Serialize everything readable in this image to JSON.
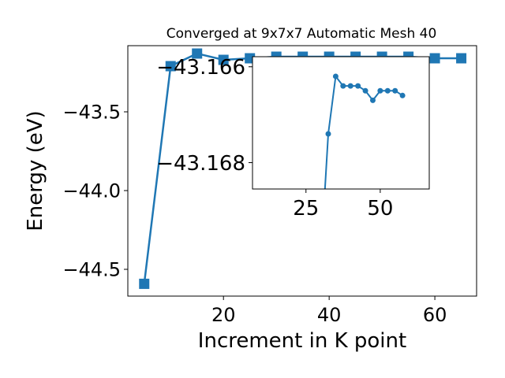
{
  "chart_data": [
    {
      "type": "line",
      "title": "Converged at 9x7x7 Automatic Mesh 40",
      "xlabel": "Increment in K point",
      "ylabel": "Energy (eV)",
      "xlim": [
        1.9,
        67.9
      ],
      "ylim": [
        -44.67,
        -43.08
      ],
      "xticks": [
        20,
        40,
        60
      ],
      "yticks": [
        -44.5,
        -44.0,
        -43.5
      ],
      "ytick_labels": [
        "−44.5",
        "−44.0",
        "−43.5"
      ],
      "marker": "square",
      "color": "#1f77b4",
      "series": [
        {
          "x": [
            5,
            10,
            15,
            20,
            25,
            30,
            35,
            40,
            45,
            50,
            55,
            60,
            65
          ],
          "y": [
            -44.592,
            -43.21,
            -43.13,
            -43.17,
            -43.16,
            -43.15,
            -43.15,
            -43.15,
            -43.15,
            -43.15,
            -43.15,
            -43.16,
            -43.16
          ]
        }
      ]
    },
    {
      "type": "line",
      "inset": true,
      "xlim": [
        7.0,
        66.5
      ],
      "ylim": [
        -43.16855,
        -43.16579
      ],
      "xticks": [
        25,
        50
      ],
      "yticks": [
        -43.168,
        -43.166
      ],
      "ytick_labels": [
        "−43.168",
        "−43.166"
      ],
      "marker": "circle",
      "color": "#1f77b4",
      "series": [
        {
          "x": [
            30,
            32.5,
            35,
            37.5,
            40,
            42.5,
            45,
            47.5,
            50,
            52.5,
            55,
            57.5
          ],
          "y": [
            -43.17,
            -43.1674,
            -43.1662,
            -43.1664,
            -43.1664,
            -43.1664,
            -43.1665,
            -43.1667,
            -43.1665,
            -43.1665,
            -43.1665,
            -43.1666
          ]
        }
      ]
    }
  ]
}
